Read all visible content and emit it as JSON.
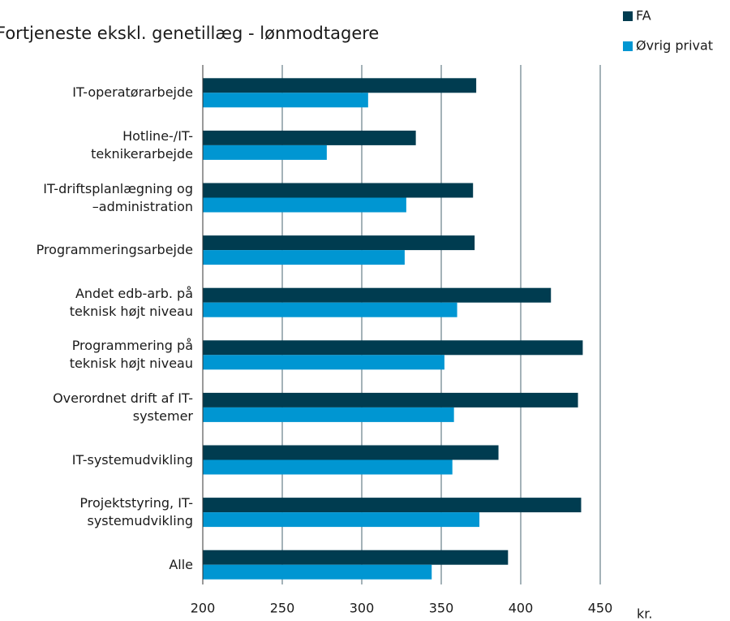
{
  "chart_data": {
    "type": "bar",
    "orientation": "horizontal",
    "title": "Fortjeneste ekskl. genetillæg - lønmodtagere",
    "x_label": "kr.",
    "categories": [
      "IT-operatørarbejde",
      "Hotline-/IT-\nteknikerarbejde",
      "IT-driftsplanlægning og\n–administration",
      "Programmeringsarbejde",
      "Andet edb-arb. på\nteknisk højt niveau",
      "Programmering på\nteknisk højt niveau",
      "Overordnet drift af IT-\nsystemer",
      "IT-systemudvikling",
      "Projektstyring, IT-\nsystemudvikling",
      "Alle"
    ],
    "series": [
      {
        "name": "FA",
        "color": "#003c50",
        "values": [
          372,
          334,
          370,
          371,
          419,
          439,
          436,
          386,
          438,
          392
        ]
      },
      {
        "name": "Øvrig privat",
        "color": "#0096d2",
        "values": [
          304,
          278,
          328,
          327,
          360,
          352,
          358,
          357,
          374,
          344
        ]
      }
    ],
    "xlim": [
      200,
      450
    ],
    "xticks": [
      200,
      250,
      300,
      350,
      400,
      450
    ],
    "grid": true,
    "legend": "top-right"
  }
}
